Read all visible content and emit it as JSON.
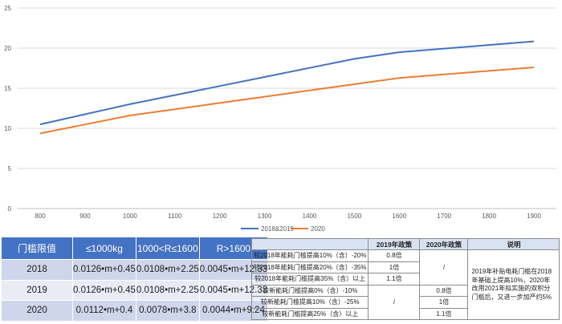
{
  "chart_data": {
    "type": "line",
    "x": [
      800,
      900,
      1000,
      1100,
      1200,
      1300,
      1400,
      1500,
      1600,
      1700,
      1800,
      1900
    ],
    "xlim": [
      750,
      1950
    ],
    "ylim": [
      0,
      25
    ],
    "yticks": [
      0,
      5,
      10,
      15,
      20,
      25
    ],
    "grid": true,
    "legend": "bottom",
    "series": [
      {
        "name": "2018&2019",
        "color": "#4472c4",
        "values": [
          10.49,
          11.75,
          13.01,
          14.14,
          15.27,
          16.4,
          17.53,
          18.66,
          19.49,
          19.94,
          20.39,
          20.84
        ]
      },
      {
        "name": "2020",
        "color": "#ed7d31",
        "values": [
          9.36,
          10.48,
          11.6,
          12.38,
          13.16,
          13.94,
          14.72,
          15.5,
          16.28,
          16.72,
          17.16,
          17.6
        ]
      }
    ]
  },
  "left_table": {
    "header": [
      "门槛限值",
      "≤1000kg",
      "1000<R≤1600",
      "R>1600"
    ],
    "rows": [
      [
        "2018",
        "0.0126•m+0.45",
        "0.0108•m+2.25",
        "0.0045•m+12.33"
      ],
      [
        "2019",
        "0.0126•m+0.45",
        "0.0108•m+2.25",
        "0.0045•m+12.33"
      ],
      [
        "2020",
        "0.0112•m+0.4",
        "0.0078•m+3.8",
        "0.0044•m+9.24"
      ]
    ]
  },
  "right_table": {
    "header": [
      "",
      "2019年政策",
      "2020年政策",
      "说明"
    ],
    "rows": [
      {
        "label": "较2018年能耗门槛提高10%（含）-20%",
        "p2019": "0.8倍"
      },
      {
        "label": "较2018年能耗门槛提高20%（含）-35%",
        "p2019": "1倍"
      },
      {
        "label": "较2018年能耗门槛提高35%（含）以上",
        "p2019": "1.1倍"
      },
      {
        "label": "较新能耗门槛提高0%（含）-10%",
        "p2020": "0.8倍"
      },
      {
        "label": "较新能耗门槛提高10%（含）-25%",
        "p2020": "1倍"
      },
      {
        "label": "较新能耗门槛提高25%（含）以上",
        "p2020": "1.1倍"
      }
    ],
    "slash": "/",
    "note": "2019年补贴电耗门槛在2018年基础上提高10%，2020年改用2021年拟实施的双积分门槛后，又进一步加严约5%"
  }
}
